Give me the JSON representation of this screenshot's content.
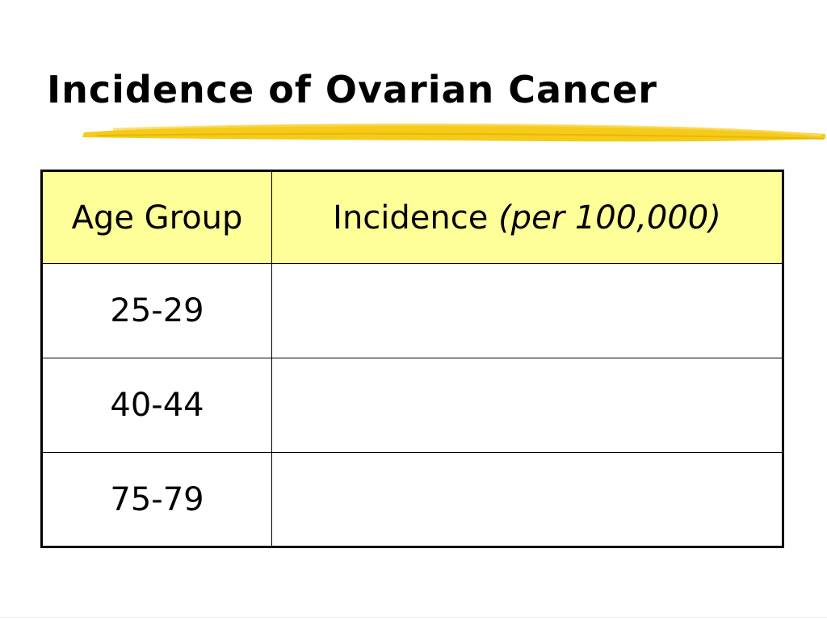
{
  "slide": {
    "title": "Incidence of Ovarian Cancer",
    "accent_color": "#f5c400",
    "header_fill": "#ffff99"
  },
  "table": {
    "headers": {
      "age_group": "Age Group",
      "incidence": "Incidence",
      "incidence_unit": "(per 100,000)"
    },
    "rows": [
      {
        "age_group": "25-29",
        "incidence": ""
      },
      {
        "age_group": "40-44",
        "incidence": ""
      },
      {
        "age_group": "75-79",
        "incidence": ""
      }
    ]
  }
}
